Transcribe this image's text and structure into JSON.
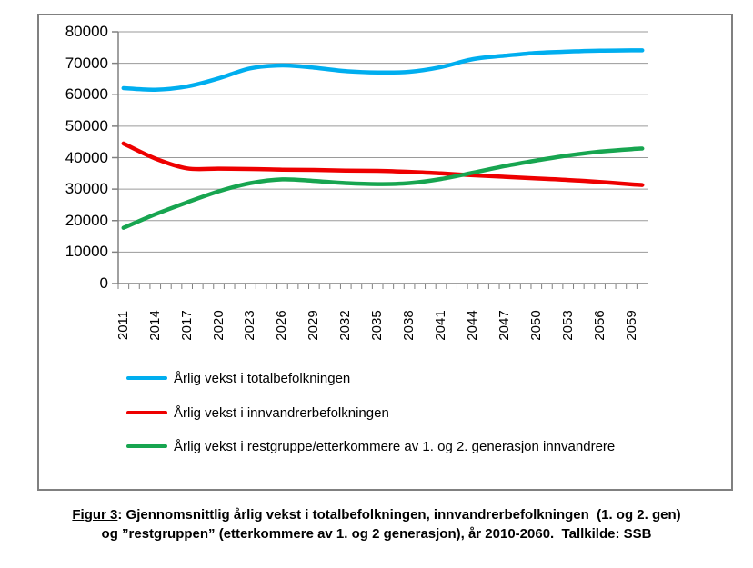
{
  "chart_data": {
    "type": "line",
    "title": "",
    "xlabel": "",
    "ylabel": "",
    "x": [
      2011,
      2014,
      2017,
      2020,
      2023,
      2026,
      2029,
      2032,
      2035,
      2038,
      2041,
      2044,
      2047,
      2050,
      2053,
      2056,
      2059,
      2060
    ],
    "series": [
      {
        "name": "Årlig vekst i totalbefolkningen",
        "color": "#00AEEF",
        "values": [
          62100,
          61600,
          62600,
          65200,
          68400,
          69300,
          68600,
          67500,
          67100,
          67300,
          68800,
          71300,
          72400,
          73300,
          73700,
          74000,
          74100,
          74100
        ]
      },
      {
        "name": "Årlig vekst i innvandrerbefolkningen",
        "color": "#EE0000",
        "values": [
          44500,
          39700,
          36600,
          36500,
          36400,
          36200,
          36100,
          35900,
          35800,
          35500,
          35000,
          34400,
          33900,
          33400,
          32900,
          32300,
          31500,
          31300
        ]
      },
      {
        "name": "Årlig vekst i restgruppe/etterkommere av 1. og 2. generasjon innvandrere",
        "color": "#17A550",
        "values": [
          17700,
          22000,
          25800,
          29300,
          31900,
          33100,
          32600,
          31900,
          31600,
          31900,
          33200,
          35200,
          37300,
          39100,
          40700,
          41900,
          42700,
          42900
        ]
      }
    ],
    "y_axis": {
      "min": 0,
      "max": 80000,
      "step": 10000,
      "tick_labels": [
        "0",
        "10000",
        "20000",
        "30000",
        "40000",
        "50000",
        "60000",
        "70000",
        "80000"
      ]
    },
    "x_axis": {
      "labeled_years": [
        2011,
        2014,
        2017,
        2020,
        2023,
        2026,
        2029,
        2032,
        2035,
        2038,
        2041,
        2044,
        2047,
        2050,
        2053,
        2056,
        2059
      ],
      "first_year": 2011,
      "last_year": 2060,
      "minor_tick_every_year": true
    },
    "grid": true,
    "legend_position": "bottom-left-inside-frame"
  },
  "legend": {
    "items": [
      {
        "label": "Årlig vekst i totalbefolkningen",
        "color": "#00AEEF"
      },
      {
        "label": "Årlig vekst i innvandrerbefolkningen",
        "color": "#EE0000"
      },
      {
        "label": "Årlig vekst i restgruppe/etterkommere av 1. og 2. generasjon innvandrere",
        "color": "#17A550"
      }
    ]
  },
  "caption": {
    "fig_label": "Figur 3",
    "line1_rest": ": Gjennomsnittlig årlig vekst i totalbefolkningen, innvandrerbefolkningen  (1. og 2. gen)",
    "line2": "og ”restgruppen” (etterkommere av 1. og 2 generasjon), år 2010-2060.  Tallkilde: SSB"
  },
  "style_colors": {
    "gridline": "#9A9A9A",
    "axis": "#808080",
    "frame_border": "#808080",
    "background": "#FFFFFF"
  }
}
